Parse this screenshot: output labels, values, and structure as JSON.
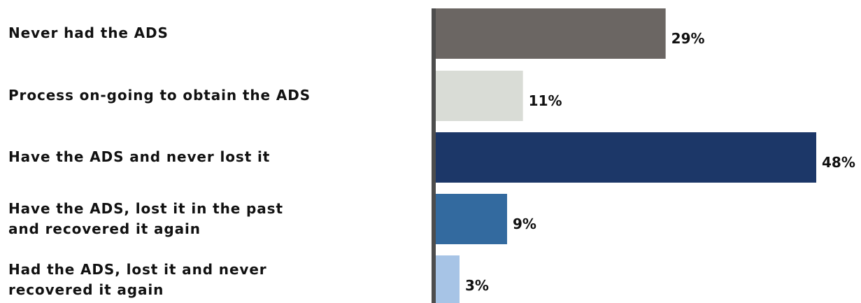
{
  "chart_data": {
    "type": "bar",
    "orientation": "horizontal",
    "categories": [
      "Never had the ADS",
      "Process on-going to obtain the ADS",
      "Have the ADS and never lost it",
      "Have the ADS, lost it in the past\nand recovered it again",
      "Had the ADS, lost it and never\nrecovered it again"
    ],
    "values": [
      29,
      11,
      48,
      9,
      3
    ],
    "value_labels": [
      "29%",
      "11%",
      "48%",
      "9%",
      "3%"
    ],
    "colors": [
      "#6b6663",
      "#d9dcd6",
      "#1c3768",
      "#336a9f",
      "#a7c4e6"
    ],
    "xlim": [
      0,
      48
    ],
    "title": "",
    "xlabel": "",
    "ylabel": "",
    "grid": false,
    "legend": false
  }
}
